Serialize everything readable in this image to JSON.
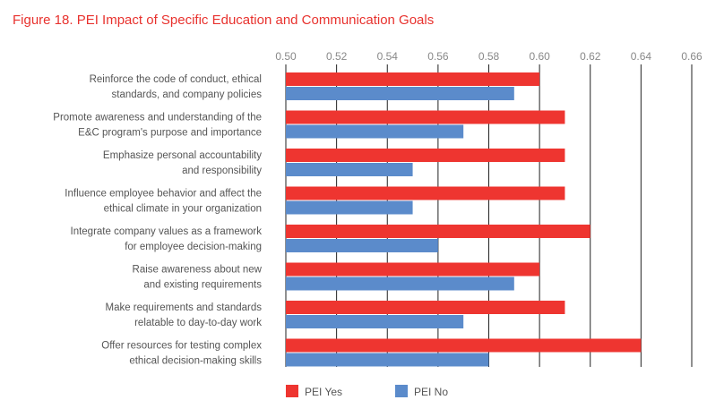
{
  "chart_data": {
    "type": "bar",
    "orientation": "horizontal",
    "title": "Figure 18. PEI Impact of Specific Education and Communication Goals",
    "categories": [
      [
        "Reinforce the code of conduct, ethical",
        "standards, and company policies"
      ],
      [
        "Promote awareness and understanding of the",
        "E&C program's purpose and importance"
      ],
      [
        "Emphasize personal accountability",
        "and responsibility"
      ],
      [
        "Influence employee behavior and affect the",
        "ethical climate in your organization"
      ],
      [
        "Integrate company values as a framework",
        "for employee decision-making"
      ],
      [
        "Raise awareness about new",
        "and existing requirements"
      ],
      [
        "Make requirements and standards",
        "relatable to day-to-day work"
      ],
      [
        "Offer resources for testing complex",
        "ethical decision-making skills"
      ]
    ],
    "series": [
      {
        "name": "PEI Yes",
        "color": "#ee3530",
        "values": [
          0.6,
          0.61,
          0.61,
          0.61,
          0.62,
          0.6,
          0.61,
          0.64
        ]
      },
      {
        "name": "PEI No",
        "color": "#5b8bcb",
        "values": [
          0.59,
          0.57,
          0.55,
          0.55,
          0.56,
          0.59,
          0.57,
          0.58
        ]
      }
    ],
    "xlim": [
      0.5,
      0.66
    ],
    "xticks": [
      "0.50",
      "0.52",
      "0.54",
      "0.56",
      "0.58",
      "0.60",
      "0.62",
      "0.64",
      "0.66"
    ],
    "xlabel": "",
    "ylabel": "",
    "grid": true,
    "legend": "bottom",
    "axis_position": "top"
  }
}
